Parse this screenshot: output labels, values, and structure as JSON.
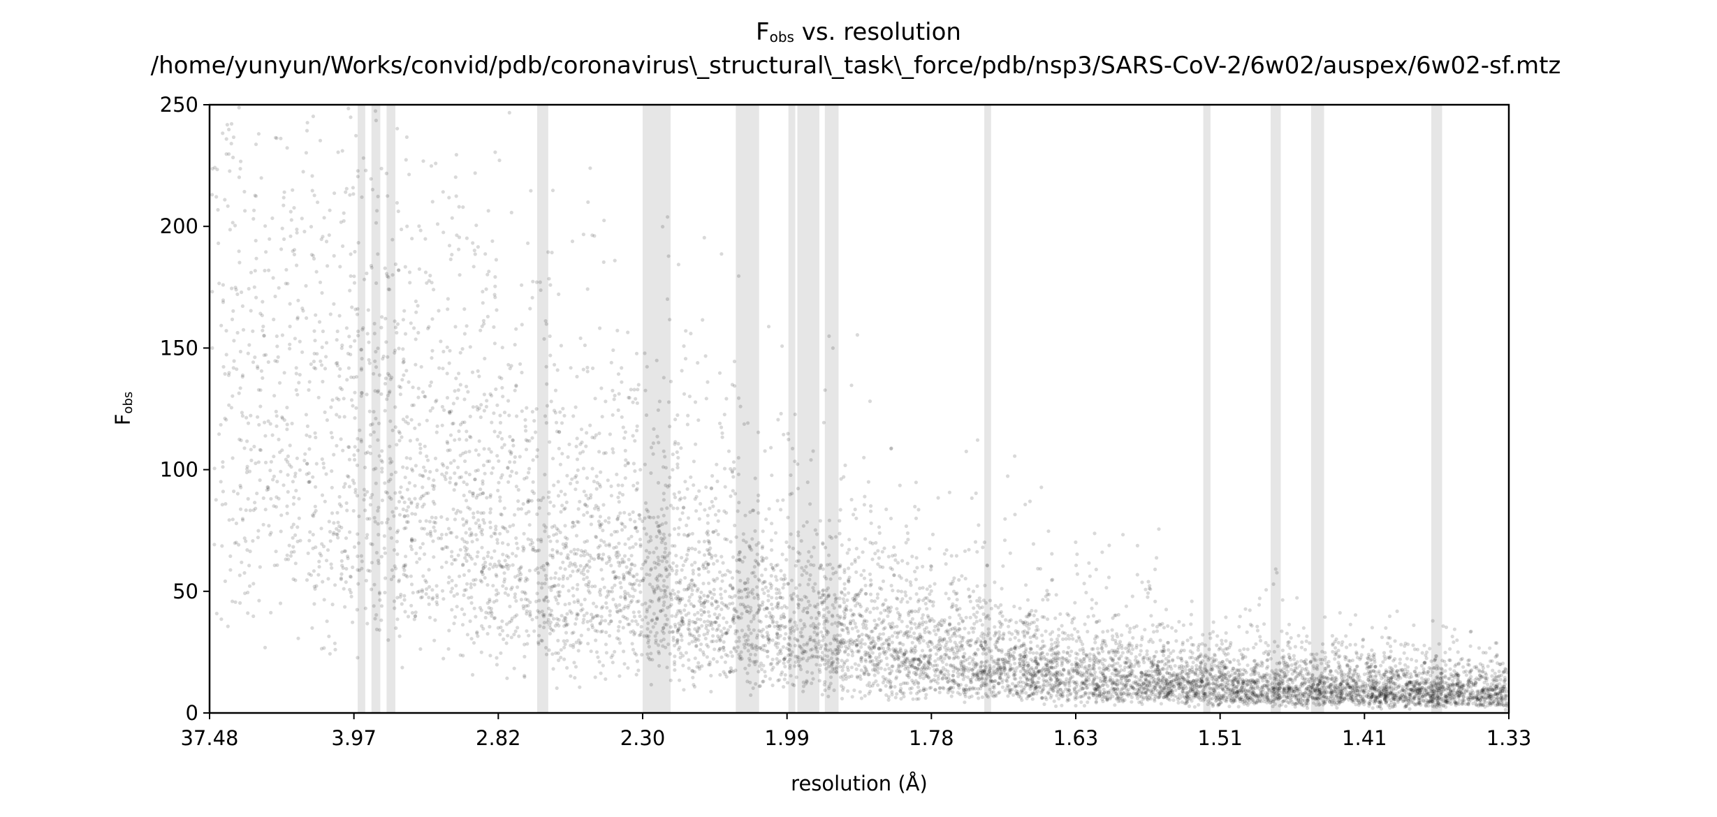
{
  "chart_data": {
    "type": "scatter",
    "title": {
      "main_base": "F",
      "main_sub": "obs",
      "main_rest": " vs. resolution",
      "path": "/home/yunyun/Works/convid/pdb/coronavirus\\_structural\\_task\\_force/pdb/nsp3/SARS-CoV-2/6w02/auspex/6w02-sf.mtz"
    },
    "xlabel": "resolution (Å)",
    "ylabel": {
      "base": "F",
      "sub": "obs"
    },
    "x_scale": "reciprocal-squared (1/d²)",
    "x_tick_labels": [
      "37.48",
      "3.97",
      "2.82",
      "2.30",
      "1.99",
      "1.78",
      "1.63",
      "1.51",
      "1.41",
      "1.33"
    ],
    "xlim_resolution_A": [
      37.48,
      1.33
    ],
    "y_ticks": [
      0,
      50,
      100,
      150,
      200,
      250
    ],
    "ylim": [
      0,
      250
    ],
    "grid": false,
    "point_color": "#000000",
    "point_alpha": 0.15,
    "shaded_band_color": "#e6e6e6",
    "ice_ring_bands_resolution_A": [
      [
        3.94,
        3.88
      ],
      [
        3.83,
        3.76
      ],
      [
        3.71,
        3.64
      ],
      [
        2.68,
        2.64
      ],
      [
        2.3,
        2.24
      ],
      [
        2.1,
        2.05
      ],
      [
        1.988,
        1.978
      ],
      [
        1.975,
        1.943
      ],
      [
        1.935,
        1.915
      ],
      [
        1.725,
        1.718
      ],
      [
        1.524,
        1.518
      ],
      [
        1.475,
        1.468
      ],
      [
        1.447,
        1.438
      ],
      [
        1.373,
        1.367
      ]
    ],
    "scatter_density_profile": {
      "x_resolution_A": [
        37.48,
        3.97,
        2.82,
        2.3,
        1.99,
        1.78,
        1.63,
        1.51,
        1.41,
        1.33
      ],
      "typical_Fobs": [
        130,
        110,
        75,
        55,
        38,
        24,
        16,
        12,
        10,
        9
      ],
      "max_Fobs": [
        250,
        250,
        250,
        215,
        180,
        140,
        110,
        70,
        45,
        30
      ]
    }
  }
}
